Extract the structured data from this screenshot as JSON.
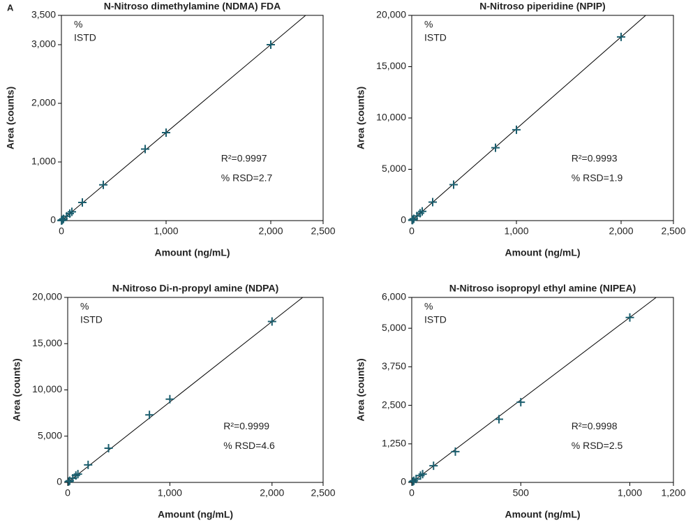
{
  "panel_label": "A",
  "chart_data": [
    {
      "type": "scatter",
      "title": "N-Nitroso dimethylamine (NDMA) FDA",
      "xlabel": "Amount (ng/mL)",
      "ylabel": "Area (counts)",
      "annotations": [
        "%",
        "ISTD",
        "R²=0.9997",
        "% RSD=2.7"
      ],
      "color": "#1b5e6e",
      "x": [
        1,
        2,
        5,
        10,
        20,
        50,
        80,
        100,
        200,
        400,
        800,
        1000,
        2000
      ],
      "values": [
        1.5,
        3,
        7.5,
        15,
        30,
        75,
        120,
        150,
        310,
        610,
        1220,
        1500,
        3000
      ],
      "fit": {
        "x": [
          0,
          2333
        ],
        "values": [
          0,
          3500
        ]
      },
      "xlim": [
        0,
        2500
      ],
      "ylim": [
        0,
        3500
      ],
      "xticks": [
        0,
        {
          "value": 1000,
          "label": "1,000"
        },
        {
          "value": 2000,
          "label": "2,000"
        },
        {
          "value": 2500,
          "label": "2,500"
        }
      ],
      "yticks": [
        0,
        {
          "value": 1000,
          "label": "1,000"
        },
        {
          "value": 2000,
          "label": "2,000"
        },
        {
          "value": 3000,
          "label": "3,000"
        },
        {
          "value": 3500,
          "label": "3,500"
        }
      ]
    },
    {
      "type": "scatter",
      "title": "N-Nitroso piperidine (NPIP)",
      "xlabel": "Amount (ng/mL)",
      "ylabel": "Area (counts)",
      "annotations": [
        "%",
        "ISTD",
        "R²=0.9993",
        "% RSD=1.9"
      ],
      "color": "#1b5e6e",
      "x": [
        5,
        10,
        20,
        50,
        80,
        100,
        200,
        400,
        800,
        1000,
        2000
      ],
      "values": [
        45,
        90,
        180,
        450,
        720,
        900,
        1800,
        3500,
        7100,
        8850,
        17900
      ],
      "fit": {
        "x": [
          0,
          2235
        ],
        "values": [
          0,
          20000
        ]
      },
      "xlim": [
        0,
        2500
      ],
      "ylim": [
        0,
        20000
      ],
      "xticks": [
        0,
        {
          "value": 1000,
          "label": "1,000"
        },
        {
          "value": 2000,
          "label": "2,000"
        },
        {
          "value": 2500,
          "label": "2,500"
        }
      ],
      "yticks": [
        0,
        {
          "value": 5000,
          "label": "5,000"
        },
        {
          "value": 10000,
          "label": "10,000"
        },
        {
          "value": 15000,
          "label": "15,000"
        },
        {
          "value": 20000,
          "label": "20,000"
        }
      ]
    },
    {
      "type": "scatter",
      "title": "N-Nitroso Di-n-propyl amine (NDPA)",
      "xlabel": "Amount (ng/mL)",
      "ylabel": "Area (counts)",
      "annotations": [
        "%",
        "ISTD",
        "R²=0.9999",
        "% RSD=4.6"
      ],
      "color": "#1b5e6e",
      "x": [
        10,
        20,
        50,
        80,
        100,
        200,
        400,
        800,
        1000,
        2000
      ],
      "values": [
        90,
        180,
        450,
        750,
        900,
        1900,
        3700,
        7300,
        9000,
        17400
      ],
      "fit": {
        "x": [
          0,
          2300
        ],
        "values": [
          0,
          20000
        ]
      },
      "xlim": [
        0,
        2500
      ],
      "ylim": [
        0,
        20000
      ],
      "xticks": [
        0,
        {
          "value": 1000,
          "label": "1,000"
        },
        {
          "value": 2000,
          "label": "2,000"
        },
        {
          "value": 2500,
          "label": "2,500"
        }
      ],
      "yticks": [
        0,
        {
          "value": 5000,
          "label": "5,000"
        },
        {
          "value": 10000,
          "label": "10,000"
        },
        {
          "value": 15000,
          "label": "15,000"
        },
        {
          "value": 20000,
          "label": "20,000"
        }
      ]
    },
    {
      "type": "scatter",
      "title": "N-Nitroso isopropyl ethyl amine (NIPEA)",
      "xlabel": "Amount (ng/mL)",
      "ylabel": "Area (counts)",
      "annotations": [
        "%",
        "ISTD",
        "R²=0.9998",
        "% RSD=2.5"
      ],
      "color": "#1b5e6e",
      "x": [
        5,
        10,
        20,
        40,
        50,
        100,
        200,
        400,
        500,
        1000
      ],
      "values": [
        27,
        55,
        110,
        220,
        270,
        540,
        1000,
        2050,
        2600,
        5350
      ],
      "fit": {
        "x": [
          0,
          1121
        ],
        "values": [
          0,
          6000
        ]
      },
      "xlim": [
        0,
        1200
      ],
      "ylim": [
        0,
        6000
      ],
      "xticks": [
        0,
        500,
        {
          "value": 1000,
          "label": "1,000"
        },
        {
          "value": 1200,
          "label": "1,200"
        }
      ],
      "yticks": [
        0,
        {
          "value": 1250,
          "label": "1,250"
        },
        {
          "value": 2500,
          "label": "2,500"
        },
        {
          "value": 3750,
          "label": "3,750"
        },
        {
          "value": 5000,
          "label": "5,000"
        },
        {
          "value": 6000,
          "label": "6,000"
        }
      ]
    }
  ]
}
